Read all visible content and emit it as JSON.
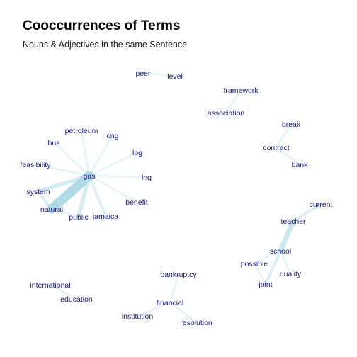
{
  "title": "Cooccurrences of Terms",
  "subtitle": "Nouns & Adjectives in the same Sentence",
  "colors": {
    "edge": "#add8e6",
    "label": "#191970",
    "background": "#ffffff"
  },
  "chart_data": {
    "type": "network",
    "nodes": [
      {
        "id": "peer",
        "label": "peer"
      },
      {
        "id": "level",
        "label": "level"
      },
      {
        "id": "framework",
        "label": "framework"
      },
      {
        "id": "association",
        "label": "association"
      },
      {
        "id": "break",
        "label": "break"
      },
      {
        "id": "contract",
        "label": "contract"
      },
      {
        "id": "bank",
        "label": "bank"
      },
      {
        "id": "petroleum",
        "label": "petroleum"
      },
      {
        "id": "cng",
        "label": "cng"
      },
      {
        "id": "bus",
        "label": "bus"
      },
      {
        "id": "lpg",
        "label": "lpg"
      },
      {
        "id": "feasibility",
        "label": "feasibility"
      },
      {
        "id": "gas",
        "label": "gas"
      },
      {
        "id": "lng",
        "label": "lng"
      },
      {
        "id": "system",
        "label": "system"
      },
      {
        "id": "benefit",
        "label": "benefit"
      },
      {
        "id": "natural",
        "label": "natural"
      },
      {
        "id": "public",
        "label": "public"
      },
      {
        "id": "jamaica",
        "label": "jamaica"
      },
      {
        "id": "current",
        "label": "current"
      },
      {
        "id": "teacher",
        "label": "teacher"
      },
      {
        "id": "school",
        "label": "school"
      },
      {
        "id": "possible",
        "label": "possible"
      },
      {
        "id": "quality",
        "label": "quality"
      },
      {
        "id": "joint",
        "label": "joint"
      },
      {
        "id": "bankruptcy",
        "label": "bankruptcy"
      },
      {
        "id": "international",
        "label": "international"
      },
      {
        "id": "education",
        "label": "education"
      },
      {
        "id": "financial",
        "label": "financial"
      },
      {
        "id": "institution",
        "label": "institution"
      },
      {
        "id": "resolution",
        "label": "resolution"
      }
    ],
    "edges": [
      {
        "source": "peer",
        "target": "level",
        "weight": 1
      },
      {
        "source": "framework",
        "target": "association",
        "weight": 1
      },
      {
        "source": "break",
        "target": "contract",
        "weight": 1
      },
      {
        "source": "contract",
        "target": "bank",
        "weight": 1
      },
      {
        "source": "gas",
        "target": "natural",
        "weight": 8
      },
      {
        "source": "gas",
        "target": "system",
        "weight": 3
      },
      {
        "source": "gas",
        "target": "public",
        "weight": 3
      },
      {
        "source": "gas",
        "target": "jamaica",
        "weight": 2
      },
      {
        "source": "gas",
        "target": "petroleum",
        "weight": 1
      },
      {
        "source": "gas",
        "target": "cng",
        "weight": 1
      },
      {
        "source": "gas",
        "target": "bus",
        "weight": 1
      },
      {
        "source": "gas",
        "target": "lpg",
        "weight": 1
      },
      {
        "source": "gas",
        "target": "feasibility",
        "weight": 1
      },
      {
        "source": "gas",
        "target": "lng",
        "weight": 1
      },
      {
        "source": "gas",
        "target": "benefit",
        "weight": 1
      },
      {
        "source": "natural",
        "target": "system",
        "weight": 2
      },
      {
        "source": "natural",
        "target": "public",
        "weight": 1
      },
      {
        "source": "teacher",
        "target": "school",
        "weight": 4
      },
      {
        "source": "teacher",
        "target": "current",
        "weight": 2
      },
      {
        "source": "school",
        "target": "possible",
        "weight": 1
      },
      {
        "source": "school",
        "target": "quality",
        "weight": 1
      },
      {
        "source": "school",
        "target": "joint",
        "weight": 2
      },
      {
        "source": "possible",
        "target": "joint",
        "weight": 1
      },
      {
        "source": "international",
        "target": "education",
        "weight": 1
      },
      {
        "source": "bankruptcy",
        "target": "financial",
        "weight": 1
      },
      {
        "source": "financial",
        "target": "institution",
        "weight": 1
      },
      {
        "source": "financial",
        "target": "resolution",
        "weight": 1
      }
    ]
  }
}
